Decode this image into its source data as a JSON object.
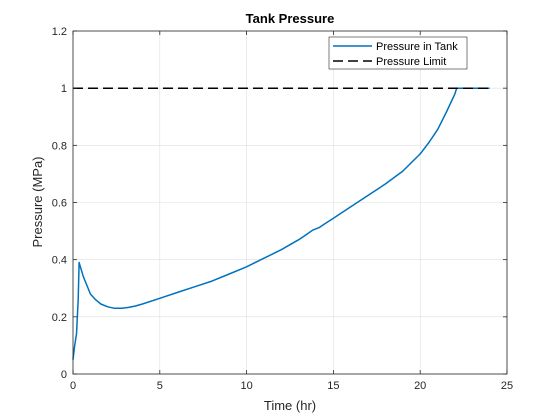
{
  "chart_data": {
    "type": "line",
    "title": "Tank Pressure",
    "xlabel": "Time (hr)",
    "ylabel": "Pressure (MPa)",
    "xlim": [
      0,
      25
    ],
    "ylim": [
      0,
      1.2
    ],
    "xticks": [
      0,
      5,
      10,
      15,
      20,
      25
    ],
    "yticks": [
      0,
      0.2,
      0.4,
      0.6,
      0.8,
      1,
      1.2
    ],
    "xtick_labels": [
      "0",
      "5",
      "10",
      "15",
      "20",
      "25"
    ],
    "ytick_labels": [
      "0",
      "0.2",
      "0.4",
      "0.6",
      "0.8",
      "1",
      "1.2"
    ],
    "grid": true,
    "legend_position": "top-right",
    "series": [
      {
        "name": "Pressure in Tank",
        "color": "#0072BD",
        "style": "solid",
        "x": [
          0,
          0.1,
          0.2,
          0.3,
          0.35,
          0.45,
          0.6,
          0.8,
          1.0,
          1.3,
          1.6,
          2.0,
          2.4,
          2.8,
          3.2,
          3.6,
          4.0,
          5.0,
          6.0,
          7.0,
          8.0,
          9.0,
          10.0,
          11.0,
          12.0,
          13.0,
          13.5,
          13.8,
          14.0,
          14.2,
          14.5,
          15.0,
          16.0,
          17.0,
          18.0,
          19.0,
          20.0,
          20.5,
          21.0,
          21.5,
          22.0,
          22.1,
          22.2,
          24.0
        ],
        "y": [
          0.05,
          0.1,
          0.14,
          0.26,
          0.39,
          0.37,
          0.34,
          0.31,
          0.28,
          0.26,
          0.245,
          0.235,
          0.23,
          0.23,
          0.233,
          0.238,
          0.245,
          0.265,
          0.285,
          0.305,
          0.325,
          0.35,
          0.375,
          0.405,
          0.435,
          0.47,
          0.49,
          0.503,
          0.508,
          0.513,
          0.525,
          0.545,
          0.585,
          0.625,
          0.665,
          0.71,
          0.77,
          0.81,
          0.855,
          0.915,
          0.98,
          1.0,
          1.0,
          1.0
        ]
      },
      {
        "name": "Pressure Limit",
        "color": "#000000",
        "style": "dashed",
        "x": [
          0,
          24
        ],
        "y": [
          1.0,
          1.0
        ]
      }
    ]
  }
}
